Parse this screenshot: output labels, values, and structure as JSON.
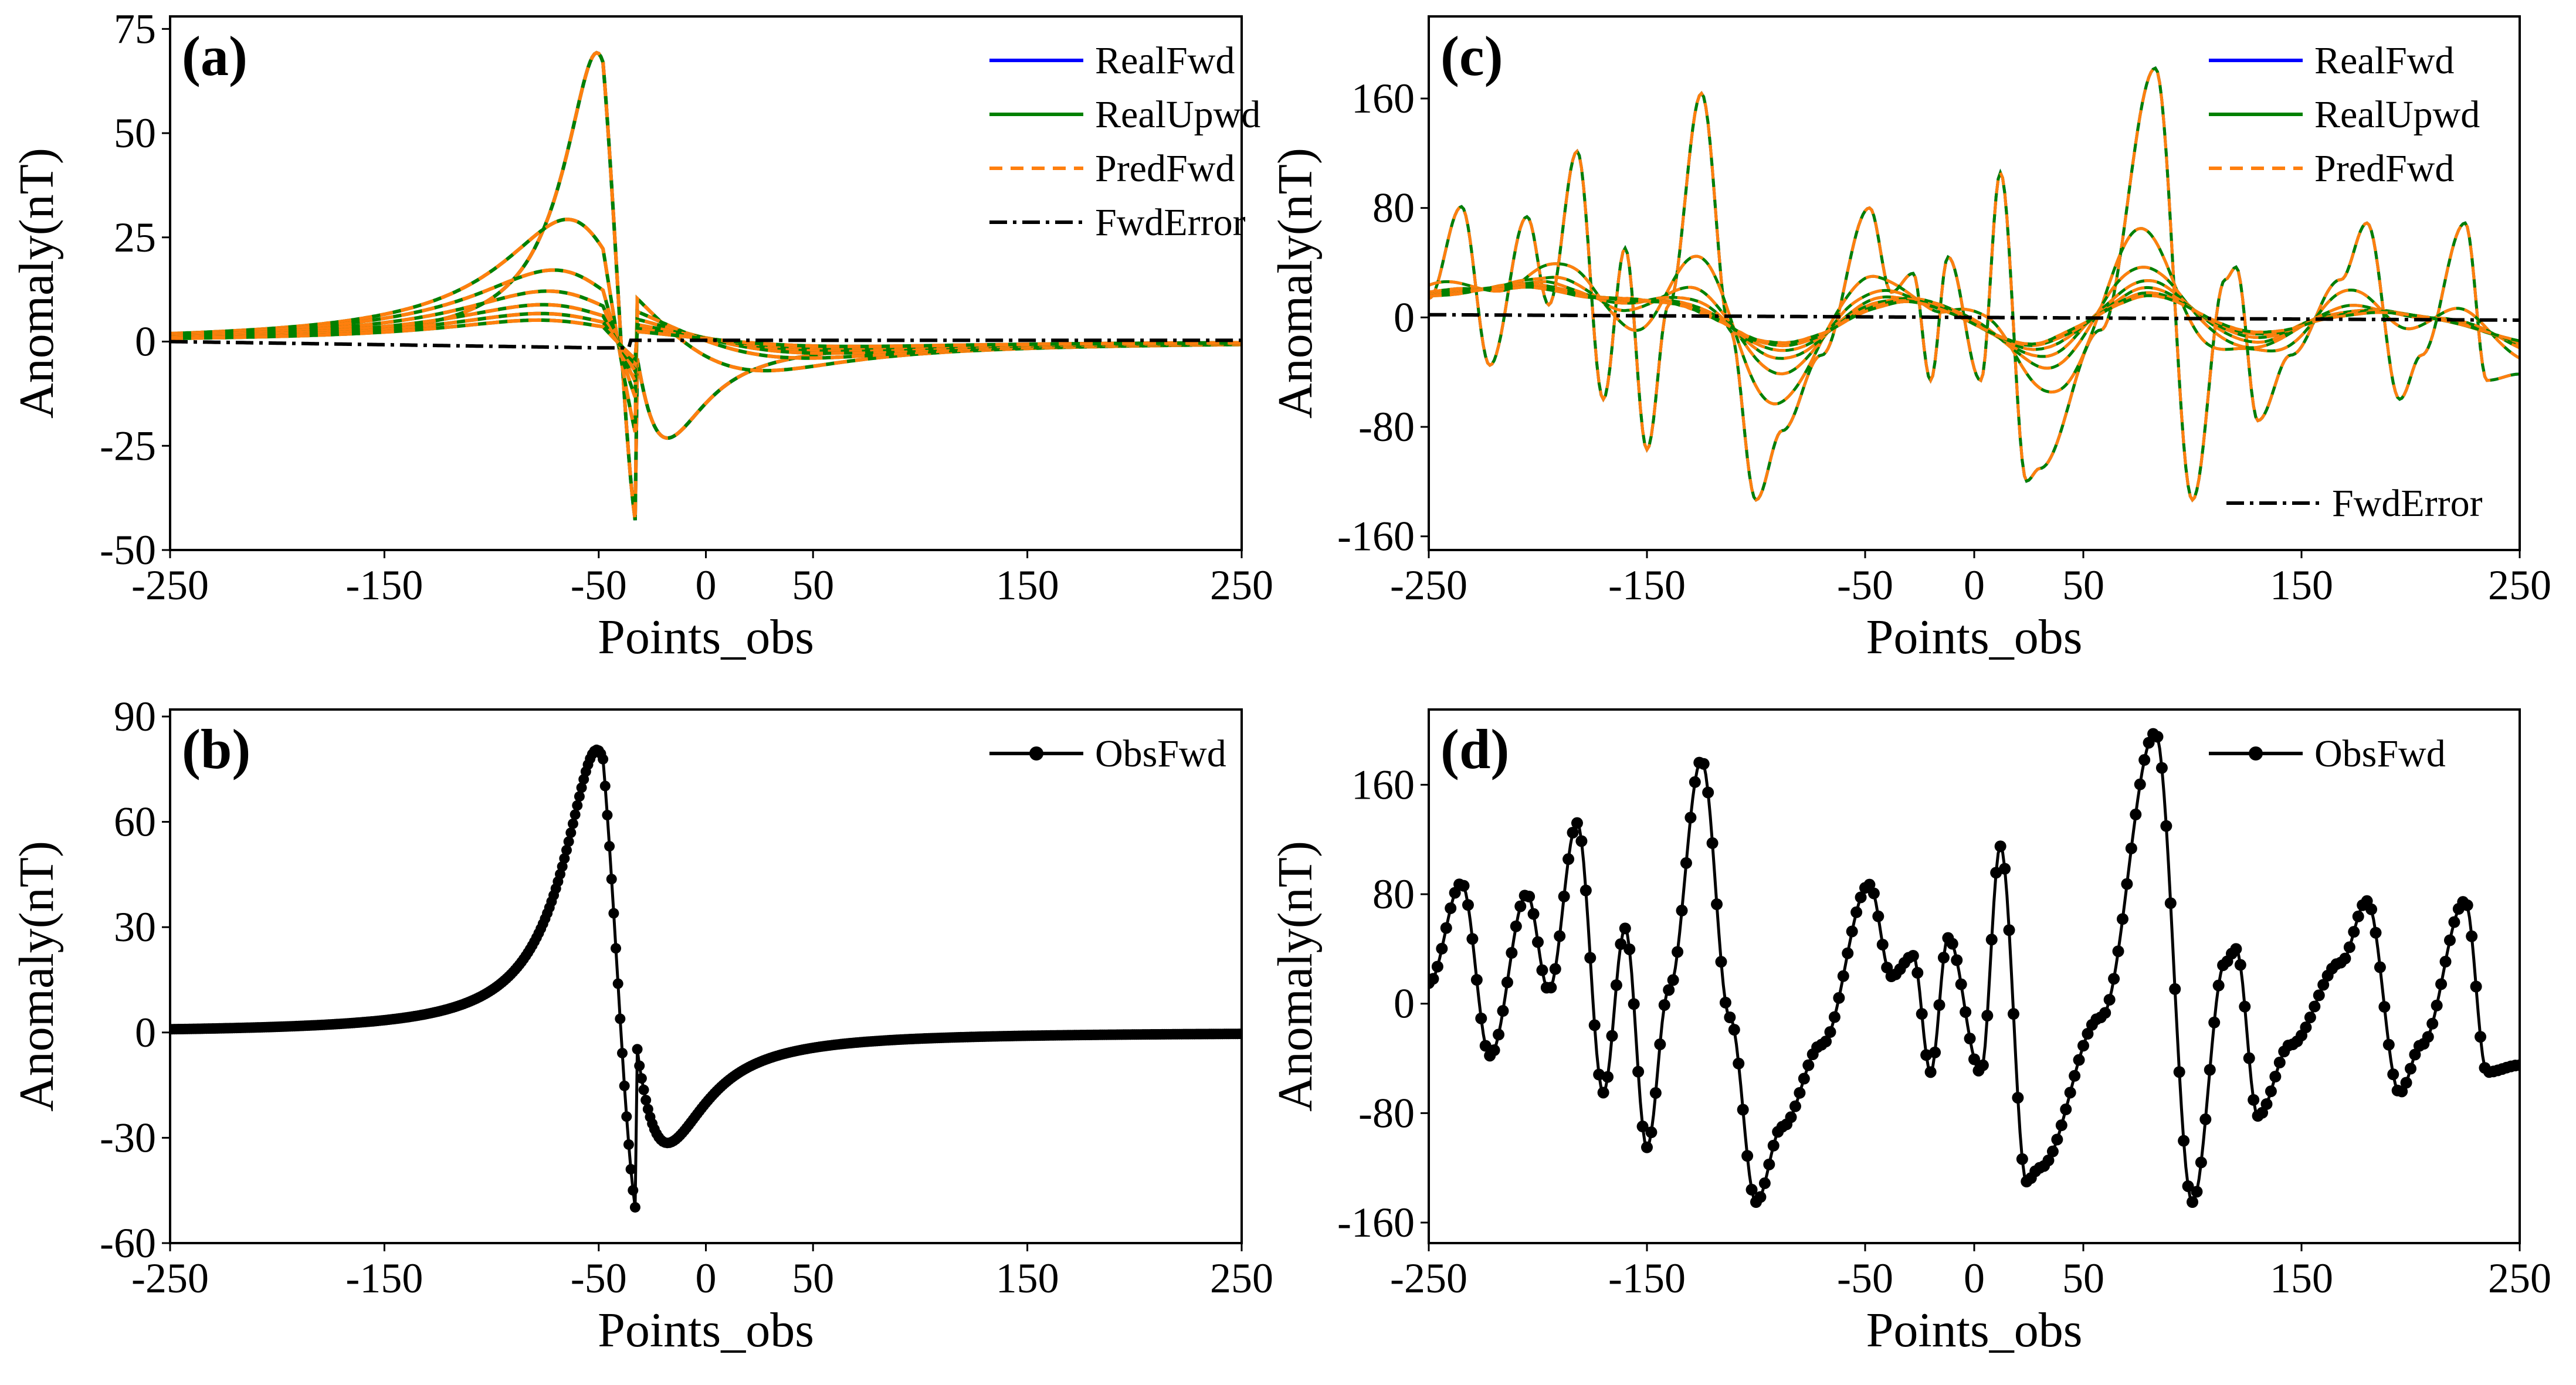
{
  "chart_data": [
    {
      "panel": "(a)",
      "type": "line",
      "xlabel": "Points_obs",
      "ylabel": "Anomaly(nT)",
      "xlim": [
        -250,
        250
      ],
      "ylim": [
        -50,
        78
      ],
      "xticks": [
        -250,
        -150,
        -50,
        0,
        50,
        150,
        250
      ],
      "yticks": [
        -50,
        -25,
        0,
        25,
        50,
        75
      ],
      "legend": {
        "position": "top-right",
        "entries": [
          "RealFwd",
          "RealUpwd",
          "PredFwd",
          "FwdError"
        ]
      },
      "peak": {
        "x": -48,
        "y": 74
      },
      "trough": {
        "x": -32,
        "y": -46
      },
      "fwd_error": "near zero",
      "upward_amplitude_scales": [
        1.0,
        0.52,
        0.32,
        0.23,
        0.17,
        0.13,
        0.1
      ]
    },
    {
      "panel": "(b)",
      "type": "line",
      "xlabel": "Points_obs",
      "ylabel": "Anomaly(nT)",
      "xlim": [
        -250,
        250
      ],
      "ylim": [
        -60,
        92
      ],
      "xticks": [
        -250,
        -150,
        -50,
        0,
        50,
        150,
        250
      ],
      "yticks": [
        -60,
        -30,
        0,
        30,
        60,
        90
      ],
      "legend": {
        "position": "top-right",
        "entries": [
          "ObsFwd"
        ]
      },
      "peak": {
        "x": -48,
        "y": 86
      },
      "trough": {
        "x": -32,
        "y": -54
      }
    },
    {
      "panel": "(c)",
      "type": "line",
      "xlabel": "Points_obs",
      "ylabel": "Anomaly(nT)",
      "xlim": [
        -250,
        250
      ],
      "ylim": [
        -170,
        220
      ],
      "xticks": [
        -250,
        -150,
        -50,
        0,
        50,
        150,
        250
      ],
      "yticks": [
        -160,
        -80,
        0,
        80,
        160
      ],
      "legend": {
        "position": "top-right",
        "entries": [
          "RealFwd",
          "RealUpwd",
          "PredFwd"
        ]
      },
      "legend2": {
        "position": "bottom-right",
        "entries": [
          "FwdError"
        ]
      },
      "fwd_error": "near zero",
      "upward_amplitude_scales": [
        1.0,
        0.55,
        0.38,
        0.28,
        0.22,
        0.17,
        0.13
      ]
    },
    {
      "panel": "(d)",
      "type": "line",
      "xlabel": "Points_obs",
      "ylabel": "Anomaly(nT)",
      "xlim": [
        -250,
        250
      ],
      "ylim": [
        -175,
        215
      ],
      "xticks": [
        -250,
        -150,
        -50,
        0,
        50,
        150,
        250
      ],
      "yticks": [
        -160,
        -80,
        0,
        80,
        160
      ],
      "legend": {
        "position": "top-right",
        "entries": [
          "ObsFwd"
        ]
      },
      "key_points": {
        "x": [
          -250,
          -235,
          -222,
          -205,
          -195,
          -182,
          -170,
          -160,
          -150,
          -140,
          -125,
          -112,
          -100,
          -88,
          -70,
          -48,
          -38,
          -28,
          -20,
          -12,
          3,
          12,
          24,
          30,
          58,
          83,
          100,
          115,
          120,
          130,
          145,
          168,
          180,
          195,
          205,
          225,
          235,
          250
        ],
        "y": [
          15,
          88,
          -38,
          80,
          10,
          132,
          -65,
          55,
          -105,
          10,
          178,
          -10,
          -145,
          -90,
          -30,
          87,
          20,
          35,
          -50,
          48,
          -50,
          115,
          -130,
          -120,
          -10,
          198,
          -145,
          30,
          40,
          -82,
          -30,
          30,
          75,
          -65,
          -30,
          75,
          -50,
          -45
        ]
      }
    }
  ],
  "colors": {
    "RealFwd": "#0000ff",
    "RealUpwd": "#008000",
    "PredFwd": "#ff7f0e",
    "FwdError": "#000000",
    "ObsFwd": "#000000"
  }
}
